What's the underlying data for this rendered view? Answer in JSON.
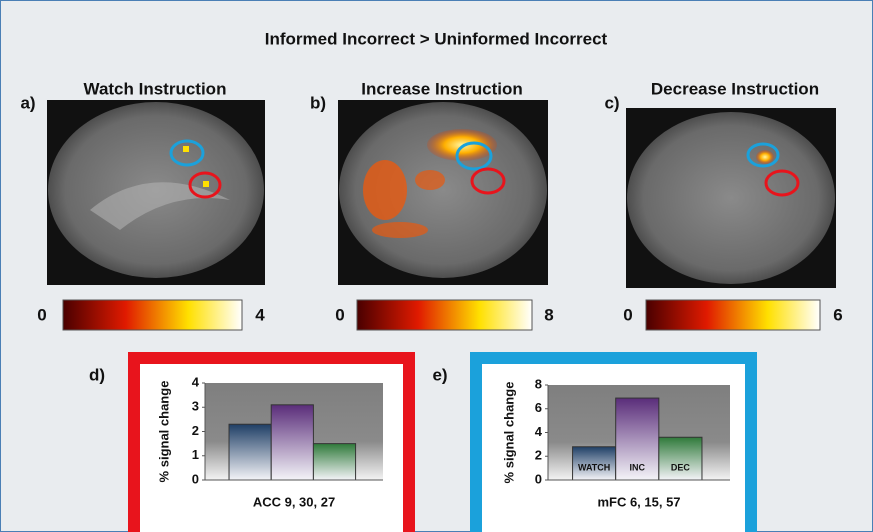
{
  "title": "Informed Incorrect > Uninformed Incorrect",
  "panels": [
    {
      "label": "a)",
      "title": "Watch Instruction",
      "colorbar": {
        "min": 0,
        "max": 4
      }
    },
    {
      "label": "b)",
      "title": "Increase Instruction",
      "colorbar": {
        "min": 0,
        "max": 8
      }
    },
    {
      "label": "c)",
      "title": "Decrease Instruction",
      "colorbar": {
        "min": 0,
        "max": 6
      }
    }
  ],
  "chart_data": [
    {
      "type": "bar",
      "label": "d)",
      "frame_color": "#e8141c",
      "xlabel": "ACC  9, 30, 27",
      "ylabel": "% signal change",
      "categories": [
        null,
        null,
        null
      ],
      "values": [
        2.3,
        3.1,
        1.5
      ],
      "colors": [
        "#1f3f66",
        "#5a2d7a",
        "#2f7a3a"
      ],
      "ylim": [
        0,
        4
      ],
      "yticks": [
        0,
        1,
        2,
        3,
        4
      ]
    },
    {
      "type": "bar",
      "label": "e)",
      "frame_color": "#1ba1db",
      "xlabel": "mFC 6, 15, 57",
      "ylabel": "% signal change",
      "categories": [
        "WATCH",
        "INC",
        "DEC"
      ],
      "values": [
        2.8,
        6.9,
        3.6
      ],
      "colors": [
        "#1f3f66",
        "#5a2d7a",
        "#2f7a3a"
      ],
      "ylim": [
        0,
        8
      ],
      "yticks": [
        0,
        2,
        4,
        6,
        8
      ]
    }
  ]
}
